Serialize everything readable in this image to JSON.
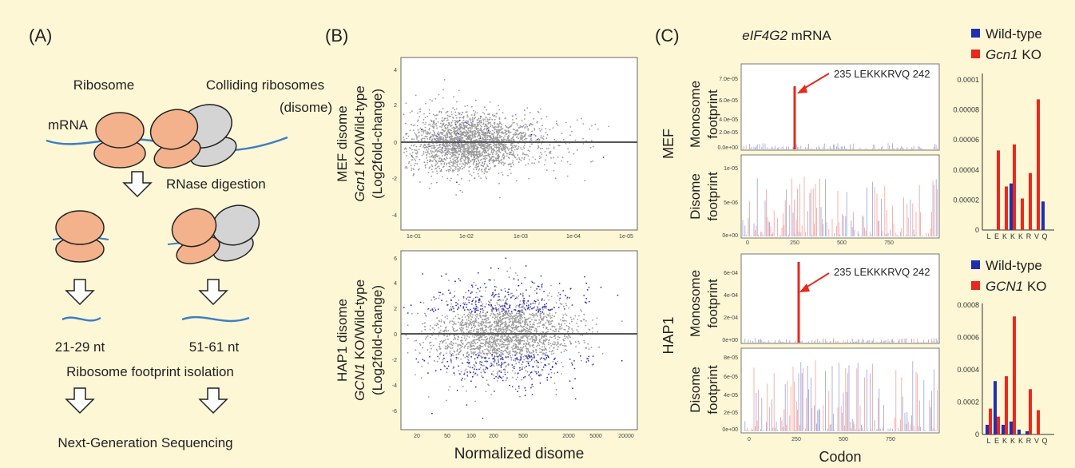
{
  "panel_a": {
    "label": "(A)",
    "ribosome": "Ribosome",
    "colliding_line1": "Colliding ribosomes",
    "colliding_line2": "(disome)",
    "mrna": "mRNA",
    "rnase": "RNase digestion",
    "monosome_size": "21-29 nt",
    "disome_size": "51-61 nt",
    "isolation": "Ribosome footprint isolation",
    "ngs": "Next-Generation Sequencing"
  },
  "panel_b": {
    "label": "(B)",
    "xlabel": "Normalized disome",
    "top": {
      "ylabel_line1": "MEF disome",
      "ylabel_gene": "Gcn1",
      "ylabel_line2_rest": " KO/Wild-type",
      "ylabel_line3": "(Log2fold-change)",
      "xticks": [
        "1e-01",
        "1e-02",
        "1e-03",
        "1e-04",
        "1e-05"
      ],
      "yticks": [
        "4",
        "2",
        "0",
        "-2",
        "-4"
      ]
    },
    "bottom": {
      "ylabel_line1": "HAP1 disome",
      "ylabel_gene": "GCN1",
      "ylabel_line2_rest": " KO/Wild-type",
      "ylabel_line3": "(Log2fold-change)",
      "xticks": [
        "20",
        "50",
        "100",
        "200",
        "500",
        "2000",
        "5000",
        "20000"
      ],
      "yticks": [
        "6",
        "4",
        "2",
        "0",
        "-2",
        "-4",
        "-6"
      ]
    }
  },
  "panel_c": {
    "label": "(C)",
    "title_gene": "eIF4G2",
    "title_rest": " mRNA",
    "codon_label": "Codon",
    "annotation": "235 LEKKKRVQ 242",
    "mef": {
      "cell": "MEF",
      "mono_line1": "Monosome",
      "mono_line2": "footprint",
      "di_line1": "Disome",
      "di_line2": "footprint",
      "legend_wt": "Wild-type",
      "legend_ko_gene": "Gcn1",
      "legend_ko_rest": " KO",
      "mono_yticks": [
        "7.0e-05",
        "6.0e-05",
        "4.0e-05",
        "2.0e-05",
        "0.0e+00"
      ],
      "di_yticks": [
        "1e-05",
        "5e-06",
        "0e+00"
      ]
    },
    "hap1": {
      "cell": "HAP1",
      "mono_line1": "Monosome",
      "mono_line2": "footprint",
      "di_line1": "Disome",
      "di_line2": "footprint",
      "legend_wt": "Wild-type",
      "legend_ko_gene": "GCN1",
      "legend_ko_rest": " KO",
      "mono_yticks": [
        "6e-04",
        "4e-04",
        "2e-04",
        "0e+00"
      ],
      "di_yticks": [
        "8e-05",
        "6e-05",
        "4e-05",
        "2e-05",
        "0e+00"
      ]
    },
    "codon_xticks": [
      "0",
      "250",
      "500",
      "750"
    ]
  },
  "colors": {
    "wild_type": "#1f2fb0",
    "ko": "#e8281c",
    "ribosome": "#f3b28c",
    "disome_grey": "#d4d4d4",
    "mrna": "#3a7fc4",
    "scatter_grey": "#9a9a9a",
    "scatter_blue": "#3030b8"
  },
  "chart_data": [
    {
      "type": "bar",
      "id": "mef_letkkrvq",
      "categories": [
        "L",
        "E",
        "K",
        "K",
        "K",
        "R",
        "V",
        "Q"
      ],
      "ylim": [
        0,
        0.0001
      ],
      "yticks": [
        "0.0001",
        "0.00008",
        "0.00006",
        "0.00004",
        "0.00002",
        "0"
      ],
      "series": [
        {
          "name": "Wild-type",
          "values": [
            0,
            0,
            0,
            3.1e-05,
            0,
            0,
            0,
            1.9e-05
          ]
        },
        {
          "name": "Gcn1 KO",
          "values": [
            0,
            5.3e-05,
            2.9e-05,
            5.7e-05,
            2.1e-05,
            3.8e-05,
            8.7e-05,
            0
          ]
        }
      ]
    },
    {
      "type": "bar",
      "id": "hap1_letkkrvq",
      "categories": [
        "L",
        "E",
        "K",
        "K",
        "K",
        "R",
        "V",
        "Q"
      ],
      "ylim": [
        0,
        0.0008
      ],
      "yticks": [
        "0.0008",
        "0.0006",
        "0.0004",
        "0.0002",
        "0"
      ],
      "series": [
        {
          "name": "Wild-type",
          "values": [
            6e-05,
            0.00033,
            6e-05,
            8e-05,
            3e-05,
            2e-05,
            0,
            0
          ]
        },
        {
          "name": "GCN1 KO",
          "values": [
            0.00016,
            0.00011,
            0.00036,
            0.00073,
            0,
            0.00028,
            0.00015,
            0
          ]
        }
      ]
    }
  ]
}
